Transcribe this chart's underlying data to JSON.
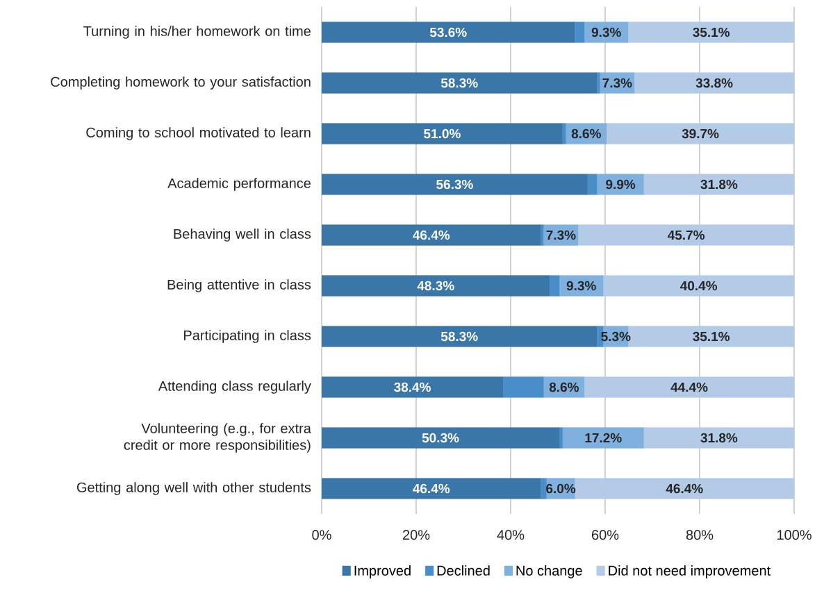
{
  "chart_data": {
    "type": "bar",
    "orientation": "horizontal",
    "stacked": true,
    "categories": [
      "Turning in his/her homework on time",
      "Completing homework to your satisfaction",
      "Coming to school motivated to learn",
      "Academic performance",
      "Behaving well in class",
      "Being attentive in class",
      "Participating in class",
      "Attending class regularly",
      "Volunteering (e.g., for extra credit or more responsibilities)",
      "Getting along well with other students"
    ],
    "series": [
      {
        "name": "Improved",
        "color": "#3a76a8",
        "values": [
          53.6,
          58.3,
          51.0,
          56.3,
          46.4,
          48.3,
          58.3,
          38.4,
          50.3,
          46.4
        ],
        "value_labels": [
          "53.6%",
          "58.3%",
          "51.0%",
          "56.3%",
          "46.4%",
          "48.3%",
          "58.3%",
          "38.4%",
          "50.3%",
          "46.4%"
        ]
      },
      {
        "name": "Declined",
        "color": "#4a8ec9",
        "values": [
          2.0,
          0.6,
          0.7,
          2.0,
          0.6,
          2.0,
          1.3,
          8.6,
          0.7,
          1.2
        ],
        "value_labels": [
          null,
          null,
          null,
          null,
          null,
          null,
          null,
          null,
          null,
          null
        ]
      },
      {
        "name": "No change",
        "color": "#7fb0de",
        "values": [
          9.3,
          7.3,
          8.6,
          9.9,
          7.3,
          9.3,
          5.3,
          8.6,
          17.2,
          6.0
        ],
        "value_labels": [
          "9.3%",
          "7.3%",
          "8.6%",
          "9.9%",
          "7.3%",
          "9.3%",
          "5.3%",
          "8.6%",
          "17.2%",
          "6.0%"
        ]
      },
      {
        "name": "Did not need improvement",
        "color": "#b4cbe8",
        "values": [
          35.1,
          33.8,
          39.7,
          31.8,
          45.7,
          40.4,
          35.1,
          44.4,
          31.8,
          46.4
        ],
        "value_labels": [
          "35.1%",
          "33.8%",
          "39.7%",
          "31.8%",
          "45.7%",
          "40.4%",
          "35.1%",
          "44.4%",
          "31.8%",
          "46.4%"
        ]
      }
    ],
    "xlim": [
      0,
      100
    ],
    "xticks": [
      {
        "value": 0,
        "label": "0%"
      },
      {
        "value": 20,
        "label": "20%"
      },
      {
        "value": 40,
        "label": "40%"
      },
      {
        "value": 60,
        "label": "60%"
      },
      {
        "value": 80,
        "label": "80%"
      },
      {
        "value": 100,
        "label": "100%"
      }
    ],
    "grid": "x",
    "legend": "bottom"
  }
}
